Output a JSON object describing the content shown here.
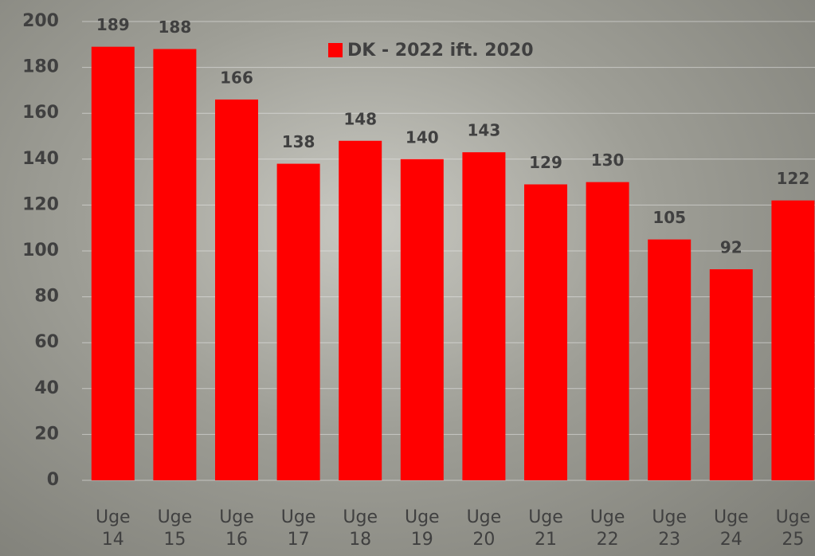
{
  "chart_data": {
    "type": "bar",
    "categories": [
      "Uge 14",
      "Uge 15",
      "Uge 16",
      "Uge 17",
      "Uge 18",
      "Uge 19",
      "Uge 20",
      "Uge 21",
      "Uge 22",
      "Uge 23",
      "Uge 24",
      "Uge 25"
    ],
    "series": [
      {
        "name": "DK - 2022 ift. 2020",
        "color": "#ff0000",
        "values": [
          189,
          188,
          166,
          138,
          148,
          140,
          143,
          129,
          130,
          105,
          92,
          122
        ]
      }
    ],
    "ylim": [
      0,
      200
    ],
    "yticks": [
      0,
      20,
      40,
      60,
      80,
      100,
      120,
      140,
      160,
      180,
      200
    ],
    "grid": true,
    "legend": "top"
  }
}
